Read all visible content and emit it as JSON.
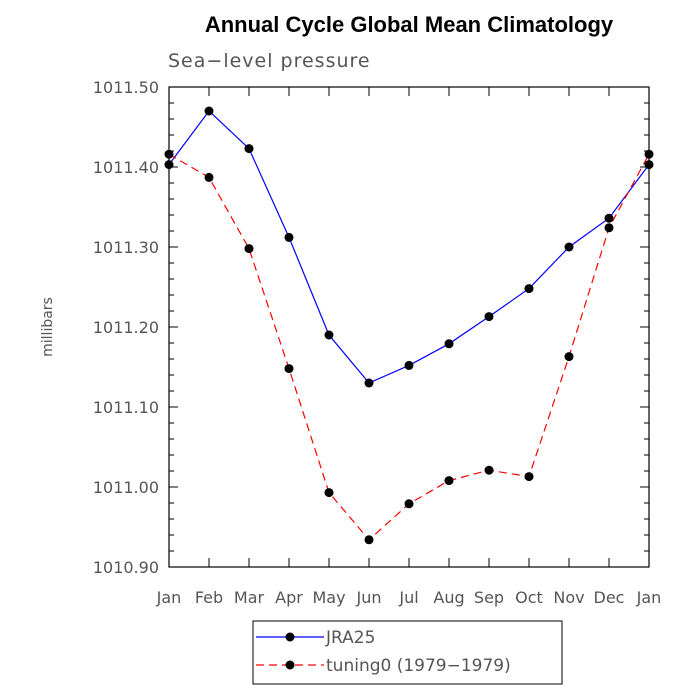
{
  "chart_data": {
    "type": "line",
    "title": "Annual Cycle Global Mean Climatology",
    "subtitle": "Sea−level pressure",
    "ylabel": "millibars",
    "categories": [
      "Jan",
      "Feb",
      "Mar",
      "Apr",
      "May",
      "Jun",
      "Jul",
      "Aug",
      "Sep",
      "Oct",
      "Nov",
      "Dec",
      "Jan"
    ],
    "ylim": [
      1010.9,
      1011.5
    ],
    "yticks": [
      "1010.90",
      "1011.00",
      "1011.10",
      "1011.20",
      "1011.30",
      "1011.40",
      "1011.50"
    ],
    "series": [
      {
        "name": "JRA25",
        "color": "#0000ff",
        "dash": "solid",
        "values": [
          1011.403,
          1011.47,
          1011.423,
          1011.312,
          1011.19,
          1011.13,
          1011.152,
          1011.179,
          1011.213,
          1011.248,
          1011.3,
          1011.336,
          1011.403
        ]
      },
      {
        "name": "tuning0 (1979−1979)",
        "color": "#ff0000",
        "dash": "dashed",
        "values": [
          1011.416,
          1011.387,
          1011.298,
          1011.148,
          1010.993,
          1010.934,
          1010.979,
          1011.008,
          1011.021,
          1011.013,
          1011.163,
          1011.324,
          1011.416
        ]
      }
    ],
    "legend_position": "bottom"
  }
}
